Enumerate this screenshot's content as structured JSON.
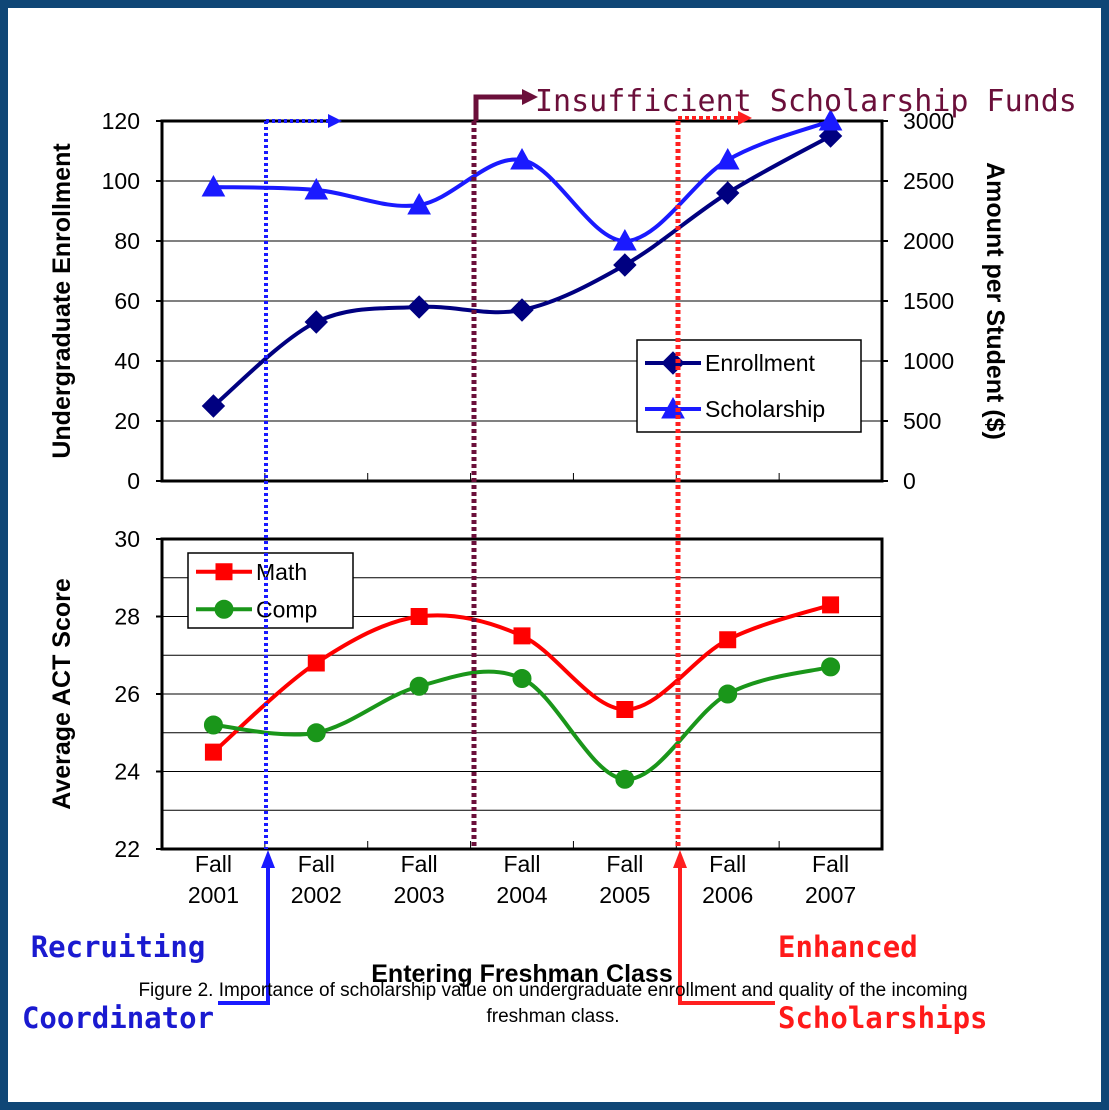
{
  "chart_data": [
    {
      "type": "line",
      "ylabel": "Undergraduate Enrollment",
      "y2label": "Amount per Student ($)",
      "ylim": [
        0,
        120
      ],
      "yticks": [
        0,
        20,
        40,
        60,
        80,
        100,
        120
      ],
      "y2lim": [
        0,
        3000
      ],
      "y2ticks": [
        0,
        500,
        1000,
        1500,
        2000,
        2500,
        3000
      ],
      "grid": true,
      "legend": "lower right",
      "series": [
        {
          "name": "Enrollment",
          "color": "#000080",
          "marker": "diamond",
          "values": [
            25,
            53,
            58,
            57,
            72,
            96,
            115
          ]
        },
        {
          "name": "Scholarship",
          "color": "#1a1aff",
          "marker": "triangle",
          "axis": "y2",
          "values": [
            2450,
            2425,
            2300,
            2675,
            2000,
            2675,
            3000
          ]
        }
      ]
    },
    {
      "type": "line",
      "ylabel": "Average ACT Score",
      "xlabel": "Entering Freshman Class",
      "categories": [
        "Fall 2001",
        "Fall 2002",
        "Fall 2003",
        "Fall 2004",
        "Fall 2005",
        "Fall 2006",
        "Fall 2007"
      ],
      "ylim": [
        22,
        30
      ],
      "yticks": [
        22,
        24,
        26,
        28,
        30
      ],
      "minor_yticks": [
        23,
        25,
        27,
        29
      ],
      "grid": true,
      "legend": "upper left",
      "series": [
        {
          "name": "Math",
          "color": "#ff0000",
          "marker": "square",
          "values": [
            24.5,
            26.8,
            28.0,
            27.5,
            25.6,
            27.4,
            28.3
          ]
        },
        {
          "name": "Comp",
          "color": "#1a961a",
          "marker": "circle",
          "values": [
            25.2,
            25.0,
            26.2,
            26.4,
            23.8,
            26.0,
            26.7
          ]
        }
      ]
    }
  ],
  "annotations": [
    "Insufficient Scholarship Funds",
    "Recruiting Coordinator",
    "Enhanced Scholarships"
  ],
  "caption": "Figure 2.  Importance of scholarship value on undergraduate enrollment and quality of the incoming freshman class."
}
